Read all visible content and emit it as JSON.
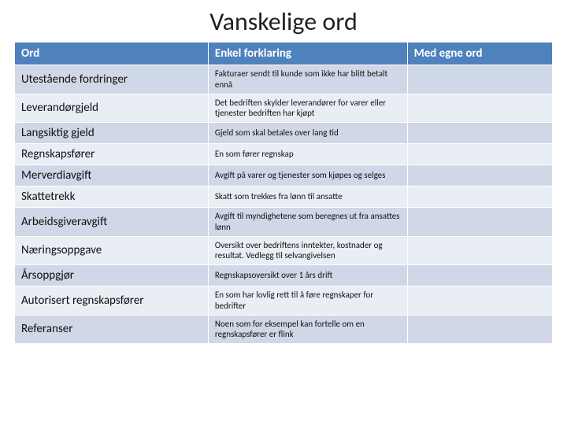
{
  "title": "Vanskelige ord",
  "colors": {
    "header_bg": "#4f81bd",
    "header_text": "#ffffff",
    "row_a": "#d0d8e7",
    "row_b": "#e9edf4",
    "border": "#ffffff",
    "text": "#111111"
  },
  "table": {
    "columns": [
      "Ord",
      "Enkel forklaring",
      "Med egne ord"
    ],
    "col_widths_pct": [
      36,
      37,
      27
    ],
    "header_fontsize": 15,
    "term_fontsize": 15,
    "expl_fontsize": 11,
    "rows": [
      {
        "term": "Utestående fordringer",
        "expl": "Fakturaer sendt til kunde som ikke har blitt betalt ennå",
        "own": ""
      },
      {
        "term": "Leverandørgjeld",
        "expl": "Det bedriften skylder leverandører for varer eller tjenester bedriften har kjøpt",
        "own": ""
      },
      {
        "term": "Langsiktig gjeld",
        "expl": "Gjeld som skal betales over lang tid",
        "own": ""
      },
      {
        "term": "Regnskapsfører",
        "expl": "En som fører regnskap",
        "own": ""
      },
      {
        "term": "Merverdiavgift",
        "expl": "Avgift på varer og tjenester som kjøpes og selges",
        "own": ""
      },
      {
        "term": "Skattetrekk",
        "expl": "Skatt som trekkes fra lønn til ansatte",
        "own": ""
      },
      {
        "term": "Arbeidsgiveravgift",
        "expl": "Avgift til myndighetene som beregnes ut fra ansattes lønn",
        "own": ""
      },
      {
        "term": "Næringsoppgave",
        "expl": "Oversikt over bedriftens inntekter, kostnader og resultat. Vedlegg til selvangivelsen",
        "own": ""
      },
      {
        "term": "Årsoppgjør",
        "expl": "Regnskapsoversikt over 1 års drift",
        "own": ""
      },
      {
        "term": "Autorisert regnskapsfører",
        "expl": "En som har lovlig rett til å føre regnskaper for bedrifter",
        "own": ""
      },
      {
        "term": "Referanser",
        "expl": "Noen som for eksempel kan fortelle om en regnskapsfører er flink",
        "own": ""
      }
    ]
  }
}
